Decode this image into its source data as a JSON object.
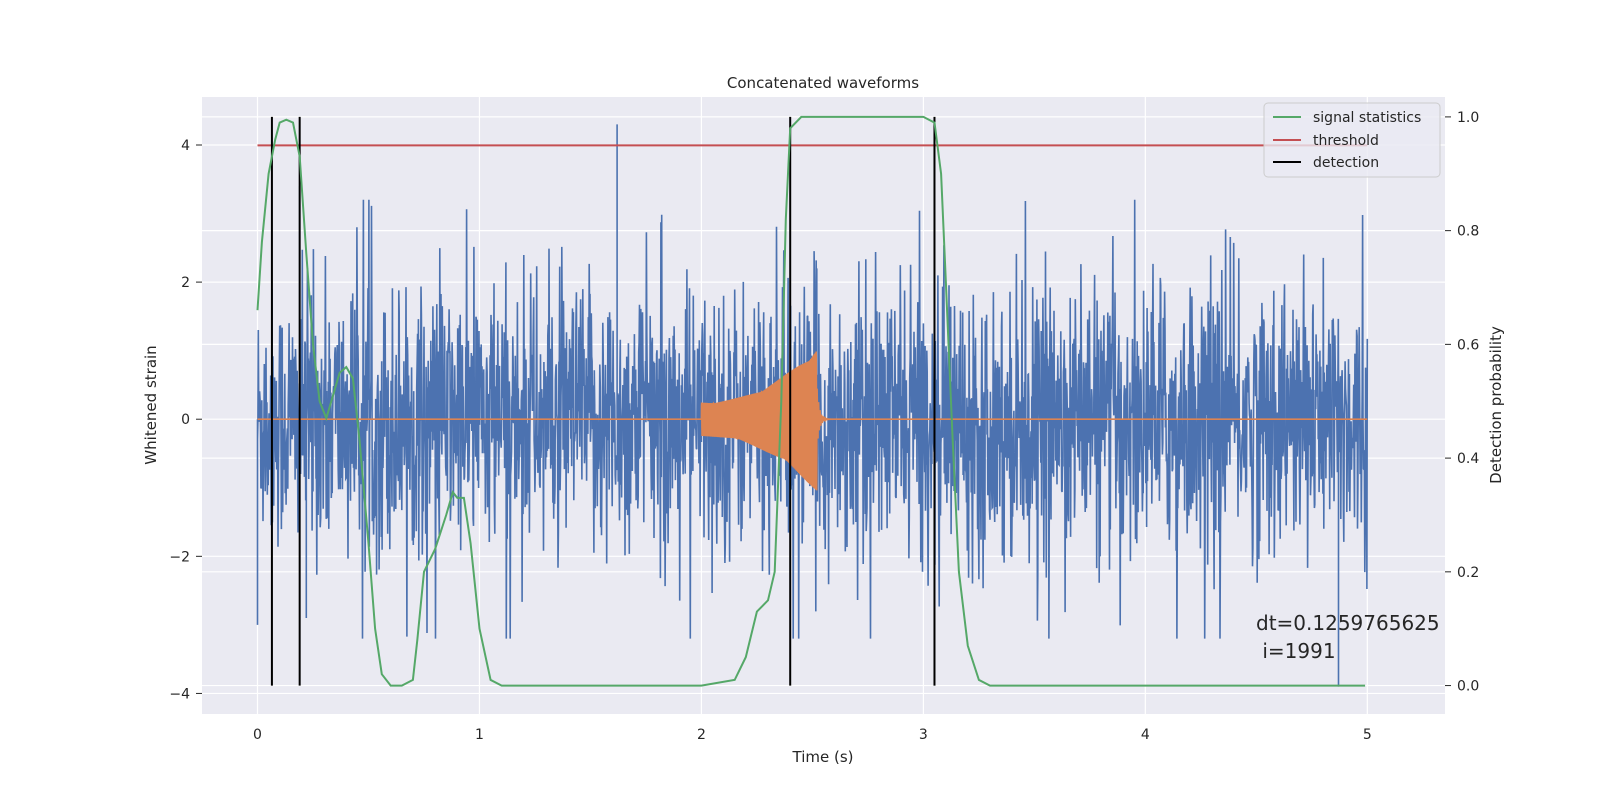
{
  "chart_data": {
    "type": "line",
    "title": "Concatenated waveforms",
    "xlabel": "Time (s)",
    "ylabel": "Whitened strain",
    "y2label": "Detection probability",
    "xlim": [
      -0.25,
      5.35
    ],
    "ylim": [
      -4.3,
      4.7
    ],
    "y2lim": [
      -0.05,
      1.035
    ],
    "x_ticks": [
      0,
      1,
      2,
      3,
      4,
      5
    ],
    "y_ticks": [
      -4,
      -2,
      0,
      2,
      4
    ],
    "y2_ticks": [
      0.0,
      0.2,
      0.4,
      0.6,
      0.8,
      1.0
    ],
    "x_tick_labels": [
      "0",
      "1",
      "2",
      "3",
      "4",
      "5"
    ],
    "y_tick_labels": [
      "−4",
      "−2",
      "0",
      "2",
      "4"
    ],
    "y2_tick_labels": [
      "0.0",
      "0.2",
      "0.4",
      "0.6",
      "0.8",
      "1.0"
    ],
    "grid": true,
    "legend_position": "upper-right",
    "legend": [
      "signal statistics",
      "threshold",
      "detection"
    ],
    "annotation": [
      "dt=0.1259765625",
      " i=1991"
    ],
    "colors": {
      "strain": "#4c72b0",
      "injection": "#dd8452",
      "signal_statistics": "#55a868",
      "threshold": "#c44e52",
      "detection": "#000000",
      "background": "#eaeaf2"
    },
    "series": [
      {
        "name": "signal statistics",
        "axis": "right",
        "x": [
          0.0,
          0.02,
          0.05,
          0.08,
          0.1,
          0.13,
          0.16,
          0.19,
          0.22,
          0.25,
          0.28,
          0.31,
          0.34,
          0.37,
          0.4,
          0.43,
          0.46,
          0.5,
          0.53,
          0.56,
          0.6,
          0.65,
          0.7,
          0.72,
          0.75,
          0.8,
          0.85,
          0.88,
          0.9,
          0.93,
          0.96,
          1.0,
          1.05,
          1.1,
          1.5,
          2.0,
          2.15,
          2.2,
          2.25,
          2.3,
          2.33,
          2.36,
          2.38,
          2.4,
          2.45,
          2.5,
          2.6,
          2.8,
          3.0,
          3.05,
          3.08,
          3.1,
          3.13,
          3.16,
          3.2,
          3.25,
          3.3,
          3.5,
          4.0,
          4.5,
          4.99
        ],
        "values": [
          0.66,
          0.78,
          0.9,
          0.96,
          0.99,
          0.995,
          0.99,
          0.93,
          0.76,
          0.6,
          0.5,
          0.47,
          0.51,
          0.55,
          0.56,
          0.54,
          0.43,
          0.25,
          0.1,
          0.02,
          0.0,
          0.0,
          0.01,
          0.08,
          0.2,
          0.24,
          0.3,
          0.34,
          0.33,
          0.33,
          0.25,
          0.1,
          0.01,
          0.0,
          0.0,
          0.0,
          0.01,
          0.05,
          0.13,
          0.15,
          0.2,
          0.5,
          0.82,
          0.98,
          1.0,
          1.0,
          1.0,
          1.0,
          1.0,
          0.99,
          0.9,
          0.72,
          0.45,
          0.2,
          0.07,
          0.01,
          0.0,
          0.0,
          0.0,
          0.0,
          0.0
        ]
      },
      {
        "name": "threshold",
        "axis": "right",
        "x": [
          0.0,
          5.0
        ],
        "values": [
          0.95,
          0.95
        ]
      },
      {
        "name": "detection",
        "axis": "right",
        "type": "vlines",
        "x": [
          0.065,
          0.19,
          2.4,
          3.05
        ],
        "ymin": 0.0,
        "ymax": 1.0
      }
    ],
    "strain_series": {
      "x_range": [
        0.0,
        5.0
      ],
      "typical_envelope": [
        -1.1,
        1.1
      ],
      "peaks": [
        {
          "x": 0.0,
          "value": -3.0
        },
        {
          "x": 0.19,
          "value": 3.4
        },
        {
          "x": 0.22,
          "value": -2.9
        },
        {
          "x": 1.62,
          "value": 4.3
        },
        {
          "x": 2.52,
          "value": 2.2
        },
        {
          "x": 3.05,
          "value": 1.9
        },
        {
          "x": 4.87,
          "value": -3.9
        }
      ]
    },
    "injection_series": {
      "x_range": [
        2.0,
        2.52
      ],
      "start_amplitude": 0.25,
      "peak_amplitude": 1.05,
      "peak_x": 2.52,
      "decays_by": 2.6
    }
  }
}
